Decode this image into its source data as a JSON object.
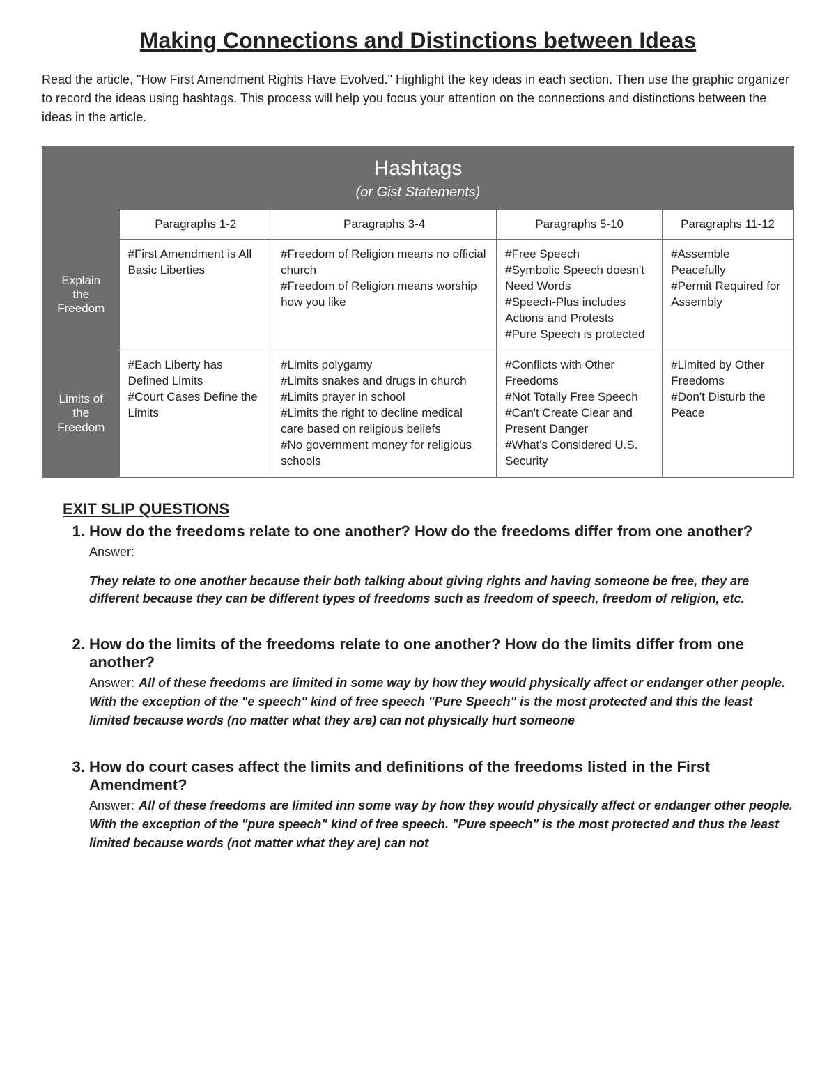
{
  "title": "Making Connections and Distinctions between Ideas",
  "intro": "Read the article, \"How First Amendment Rights Have Evolved.\" Highlight the key ideas in each section. Then use the graphic organizer to record the ideas using hashtags. This process will help you focus your attention on the connections and distinctions between the ideas in the article.",
  "table": {
    "header_big": "Hashtags",
    "header_sub": "(or Gist Statements)",
    "columns": [
      "Paragraphs 1-2",
      "Paragraphs 3-4",
      "Paragraphs 5-10",
      "Paragraphs 11-12"
    ],
    "rows": [
      {
        "label_lines": [
          "Explain",
          "the",
          "Freedom"
        ],
        "cells": [
          "#First Amendment is All Basic Liberties",
          "#Freedom of Religion means no official church\n#Freedom of Religion means worship how you like",
          "#Free Speech\n#Symbolic Speech doesn't Need Words\n#Speech-Plus includes Actions and Protests\n#Pure Speech is protected",
          "#Assemble Peacefully\n#Permit Required for Assembly"
        ]
      },
      {
        "label_lines": [
          "Limits of",
          "the",
          "Freedom"
        ],
        "cells": [
          "#Each Liberty has Defined Limits\n#Court Cases Define the Limits",
          "#Limits polygamy\n#Limits snakes and drugs in church\n#Limits prayer in school\n#Limits the right to decline medical care based on religious beliefs\n#No government money for religious schools",
          "#Conflicts with Other Freedoms\n#Not Totally Free Speech\n#Can't Create Clear and Present Danger\n#What's Considered U.S. Security",
          "#Limited by Other Freedoms\n#Don't Disturb the Peace"
        ]
      }
    ]
  },
  "exit_heading": "EXIT SLIP QUESTIONS",
  "answer_label": "Answer:",
  "questions": [
    {
      "q": "How do the freedoms relate to one another? How do the freedoms differ from one another?",
      "answer_inline": false,
      "a": "They relate to one another because their both talking about giving rights and having someone be free, they are different because they can be different types of freedoms such as freedom of speech, freedom of religion, etc."
    },
    {
      "q": "How do the limits of the freedoms relate to one another? How do the limits differ from one another?",
      "answer_inline": true,
      "a": "All of these freedoms are limited in some way by how they would physically affect or endanger other people. With the exception of the \"e speech\" kind of free speech \"Pure Speech\" is the most protected and this the least limited because words (no matter what they are) can not physically hurt someone"
    },
    {
      "q": "How do court cases affect the limits and definitions of the freedoms listed in the First Amendment?",
      "answer_inline": true,
      "a": "All of these freedoms are limited inn some way by how they would physically affect or endanger other people. With the exception of the \"pure speech\" kind of free speech. \"Pure speech\" is the most protected and thus the least limited because words (not matter what they are) can not"
    }
  ]
}
